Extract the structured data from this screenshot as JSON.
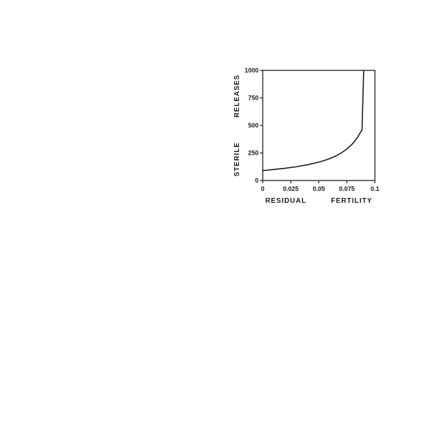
{
  "chart_data": {
    "type": "line",
    "title": "",
    "xlabel": "RESIDUAL   FERTILITY",
    "ylabel": "STERILE   RELEASES",
    "xlim": [
      0,
      0.1
    ],
    "ylim": [
      0,
      1000
    ],
    "x_ticks": [
      0,
      0.025,
      0.05,
      0.075,
      0.1
    ],
    "x_tick_labels": [
      "0",
      "0.025",
      "0.05",
      "0.075",
      "0.1"
    ],
    "y_ticks": [
      0,
      250,
      500,
      750,
      1000
    ],
    "y_tick_labels": [
      "0",
      "250",
      "500",
      "750",
      "1000"
    ],
    "grid": false,
    "legend": "none",
    "series": [
      {
        "x": [
          0,
          0.01,
          0.02,
          0.03,
          0.04,
          0.05,
          0.055,
          0.06,
          0.065,
          0.07,
          0.075,
          0.08,
          0.083,
          0.085,
          0.087,
          0.0885,
          0.09
        ],
        "y": [
          90,
          100,
          111,
          125,
          143,
          167,
          182,
          200,
          222,
          250,
          286,
          333,
          370,
          400,
          435,
          460,
          1000
        ],
        "values": [
          90,
          100,
          111,
          125,
          143,
          167,
          182,
          200,
          222,
          250,
          286,
          333,
          370,
          400,
          435,
          460,
          1000
        ]
      }
    ]
  }
}
